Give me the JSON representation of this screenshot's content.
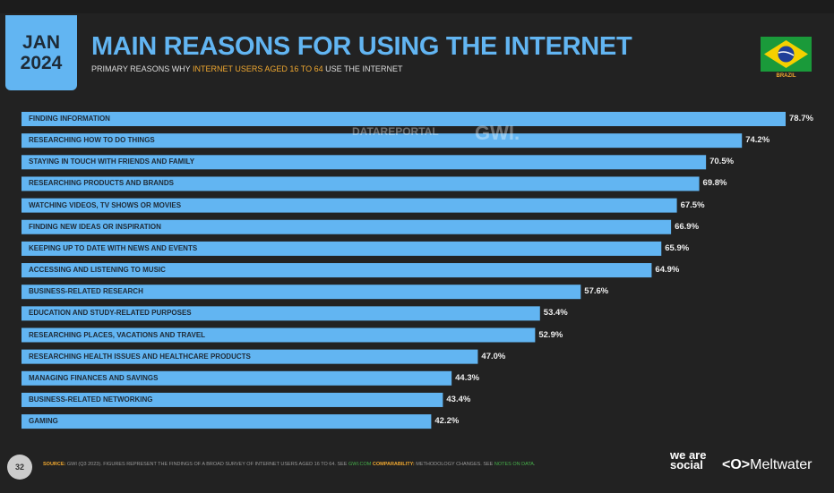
{
  "header": {
    "date_month": "JAN",
    "date_year": "2024",
    "title": "MAIN REASONS FOR USING THE INTERNET",
    "subtitle_pre": "PRIMARY REASONS WHY ",
    "subtitle_highlight": "INTERNET USERS AGED 16 TO 64",
    "subtitle_post": " USE THE INTERNET",
    "country": "BRAZIL"
  },
  "watermark": {
    "a": "DATAREPORTAL",
    "b": "GWI."
  },
  "chart_data": {
    "type": "bar",
    "orientation": "horizontal",
    "title": "MAIN REASONS FOR USING THE INTERNET",
    "xlim": [
      0,
      80
    ],
    "unit": "%",
    "categories": [
      "FINDING INFORMATION",
      "RESEARCHING HOW TO DO THINGS",
      "STAYING IN TOUCH WITH FRIENDS AND FAMILY",
      "RESEARCHING PRODUCTS AND BRANDS",
      "WATCHING VIDEOS, TV SHOWS OR MOVIES",
      "FINDING NEW IDEAS OR INSPIRATION",
      "KEEPING UP TO DATE WITH NEWS AND EVENTS",
      "ACCESSING AND LISTENING TO MUSIC",
      "BUSINESS-RELATED RESEARCH",
      "EDUCATION AND STUDY-RELATED PURPOSES",
      "RESEARCHING PLACES, VACATIONS AND TRAVEL",
      "RESEARCHING HEALTH ISSUES AND HEALTHCARE PRODUCTS",
      "MANAGING FINANCES AND SAVINGS",
      "BUSINESS-RELATED NETWORKING",
      "GAMING"
    ],
    "values": [
      78.7,
      74.2,
      70.5,
      69.8,
      67.5,
      66.9,
      65.9,
      64.9,
      57.6,
      53.4,
      52.9,
      47.0,
      44.3,
      43.4,
      42.2
    ],
    "labels": [
      "78.7%",
      "74.2%",
      "70.5%",
      "69.8%",
      "67.5%",
      "66.9%",
      "65.9%",
      "64.9%",
      "57.6%",
      "53.4%",
      "52.9%",
      "47.0%",
      "44.3%",
      "43.4%",
      "42.2%"
    ],
    "bar_color": "#62b5f2"
  },
  "footer": {
    "page": "32",
    "source_label": "SOURCE:",
    "source_text": " GWI (Q3 2023). FIGURES REPRESENT THE FINDINGS OF A BROAD SURVEY OF INTERNET USERS AGED 16 TO 64. SEE ",
    "gwi_link": "GWI.COM",
    "comp_label": " COMPARABILITY:",
    "comp_text": " METHODOLOGY CHANGES. SEE ",
    "notes_link": "NOTES ON DATA",
    "notes_end": ".",
    "brand1": "we are social",
    "brand2": "Meltwater"
  }
}
